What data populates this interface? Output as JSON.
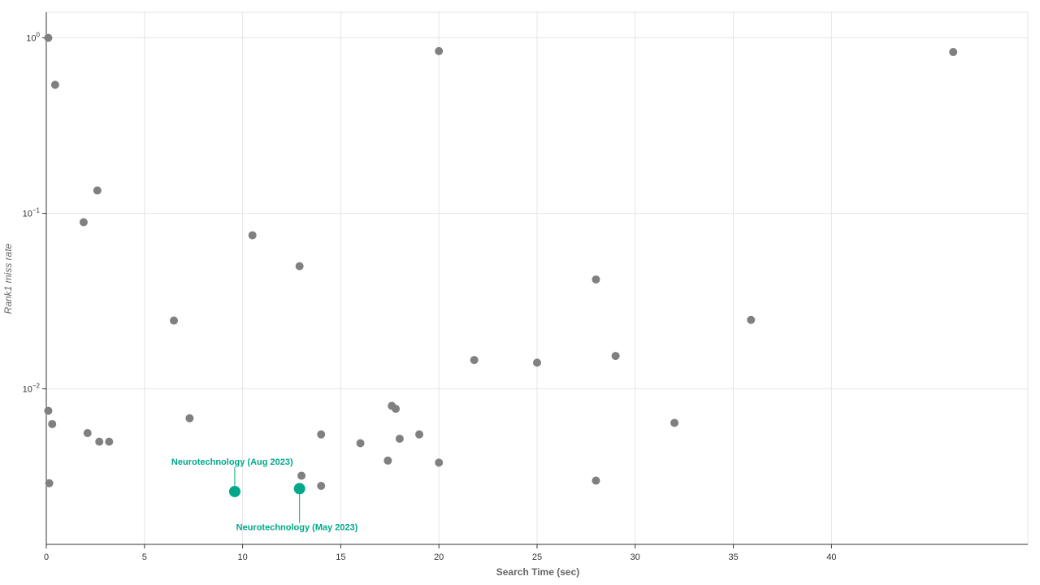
{
  "chart_data": {
    "type": "scatter",
    "title": "",
    "xlabel": "Search Time (sec)",
    "ylabel": "Rank1 miss rate",
    "xlim": [
      0,
      50
    ],
    "ylim": [
      0.0013,
      1.4
    ],
    "y_scale": "log",
    "grid": true,
    "x_ticks": [
      0,
      5,
      10,
      15,
      20,
      25,
      30,
      35,
      40
    ],
    "y_ticks": [
      {
        "value": 1,
        "base": "10",
        "exp": "0"
      },
      {
        "value": 0.1,
        "base": "10",
        "exp": "−1"
      },
      {
        "value": 0.01,
        "base": "10",
        "exp": "−2"
      }
    ],
    "colors": {
      "points": "#808080",
      "highlight": "#00a88a",
      "grid": "#e5e5e5",
      "axis": "#333333"
    },
    "points": [
      {
        "x": 0.1,
        "y": 1.0
      },
      {
        "x": 0.45,
        "y": 0.54
      },
      {
        "x": 2.6,
        "y": 0.135
      },
      {
        "x": 1.9,
        "y": 0.089
      },
      {
        "x": 0.1,
        "y": 0.0075
      },
      {
        "x": 0.3,
        "y": 0.0063
      },
      {
        "x": 2.1,
        "y": 0.0056
      },
      {
        "x": 2.7,
        "y": 0.005
      },
      {
        "x": 3.2,
        "y": 0.005
      },
      {
        "x": 0.15,
        "y": 0.0029
      },
      {
        "x": 6.5,
        "y": 0.0245
      },
      {
        "x": 7.3,
        "y": 0.0068
      },
      {
        "x": 10.5,
        "y": 0.075
      },
      {
        "x": 12.9,
        "y": 0.05
      },
      {
        "x": 13.0,
        "y": 0.0032
      },
      {
        "x": 14.0,
        "y": 0.0055
      },
      {
        "x": 14.0,
        "y": 0.0028
      },
      {
        "x": 16.0,
        "y": 0.0049
      },
      {
        "x": 17.4,
        "y": 0.0039
      },
      {
        "x": 17.6,
        "y": 0.008
      },
      {
        "x": 17.8,
        "y": 0.0077
      },
      {
        "x": 18.0,
        "y": 0.0052
      },
      {
        "x": 19.0,
        "y": 0.0055
      },
      {
        "x": 20.0,
        "y": 0.84
      },
      {
        "x": 20.0,
        "y": 0.0038
      },
      {
        "x": 21.8,
        "y": 0.0146
      },
      {
        "x": 25.0,
        "y": 0.0141
      },
      {
        "x": 28.0,
        "y": 0.042
      },
      {
        "x": 28.0,
        "y": 0.003
      },
      {
        "x": 29.0,
        "y": 0.0154
      },
      {
        "x": 32.0,
        "y": 0.0064
      },
      {
        "x": 35.9,
        "y": 0.0247
      },
      {
        "x": 46.2,
        "y": 0.83
      }
    ],
    "highlighted": [
      {
        "label": "Neurotechnology  (Aug 2023)",
        "x": 9.6,
        "y": 0.0026,
        "label_position": "above"
      },
      {
        "label": "Neurotechnology  (May 2023)",
        "x": 12.9,
        "y": 0.0027,
        "label_position": "below"
      }
    ]
  }
}
